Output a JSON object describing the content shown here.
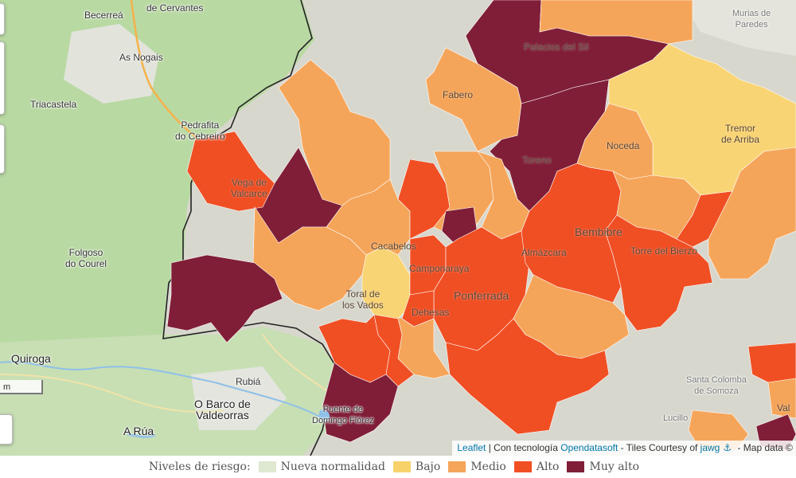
{
  "map": {
    "places": [
      {
        "key": "becerrea",
        "label": "Becerreá"
      },
      {
        "key": "cervantes",
        "label": "de Cervantes"
      },
      {
        "key": "nogais",
        "label": "As Nogais"
      },
      {
        "key": "triacastela",
        "label": "Triacastela"
      },
      {
        "key": "pedrafita",
        "label": "Pedrafita\ndo Cebreiro"
      },
      {
        "key": "folgoso",
        "label": "Folgoso\ndo Courel"
      },
      {
        "key": "quiroga",
        "label": "Quiroga"
      },
      {
        "key": "rubia",
        "label": "Rubiá"
      },
      {
        "key": "barco",
        "label": "O Barco de\nValdeorras"
      },
      {
        "key": "arua",
        "label": "A Rúa"
      },
      {
        "key": "puente",
        "label": "Puente de\nDomingo Flórez"
      },
      {
        "key": "murias",
        "label": "Murias de\nParedes"
      },
      {
        "key": "santacolomba",
        "label": "Santa Colomba\nde Somoza"
      },
      {
        "key": "lucillo",
        "label": "Lucillo"
      },
      {
        "key": "vega",
        "label": "Vega de\nValcarce"
      },
      {
        "key": "palacios",
        "label": "Palacios del Sil"
      },
      {
        "key": "fabero",
        "label": "Fabero"
      },
      {
        "key": "toreno",
        "label": "Toreno"
      },
      {
        "key": "noceda",
        "label": "Noceda"
      },
      {
        "key": "tremor",
        "label": "Tremor\nde Arriba"
      },
      {
        "key": "cacabelos",
        "label": "Cacabelos"
      },
      {
        "key": "camponaraya",
        "label": "Camponaraya"
      },
      {
        "key": "ponferrada",
        "label": "Ponferrada"
      },
      {
        "key": "almazcara",
        "label": "Almázcara"
      },
      {
        "key": "bembibre",
        "label": "Bembibre"
      },
      {
        "key": "torre",
        "label": "Torre del Bierzo"
      },
      {
        "key": "toral",
        "label": "Toral de\nlos Vados"
      },
      {
        "key": "dehesas",
        "label": "Dehesas"
      },
      {
        "key": "val",
        "label": "Val"
      }
    ],
    "scale_label": "m"
  },
  "attribution": {
    "leaflet": "Leaflet",
    "sep": " | Con tecnología ",
    "opendatasoft": "Opendatasoft",
    "tiles": " - Tiles Courtesy of ",
    "jawg": "jawg",
    "mapdata": " - Map data ©"
  },
  "legend": {
    "title": "Niveles de riesgo:",
    "items": [
      {
        "label": "Nueva normalidad",
        "color": "#dfe8d0"
      },
      {
        "label": "Bajo",
        "color": "#f7d26b"
      },
      {
        "label": "Medio",
        "color": "#f5a55a"
      },
      {
        "label": "Alto",
        "color": "#f04f24"
      },
      {
        "label": "Muy alto",
        "color": "#801e38"
      }
    ]
  }
}
